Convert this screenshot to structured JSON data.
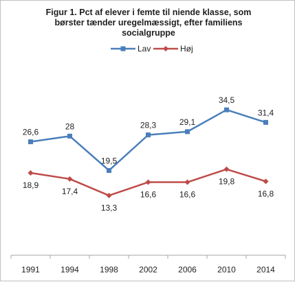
{
  "chart_data": {
    "type": "line",
    "title_lines": [
      "Figur 1. Pct af elever i femte til niende klasse, som",
      "børster tænder uregelmæssigt, efter familiens",
      "socialgruppe"
    ],
    "categories": [
      "1991",
      "1994",
      "1998",
      "2002",
      "2006",
      "2010",
      "2014"
    ],
    "series": [
      {
        "name": "Lav",
        "color": "#4a7ebb",
        "marker": "square",
        "values": [
          26.6,
          28,
          19.5,
          28.3,
          29.1,
          34.5,
          31.4
        ],
        "labels": [
          "26,6",
          "28",
          "19,5",
          "28,3",
          "29,1",
          "34,5",
          "31,4"
        ]
      },
      {
        "name": "Høj",
        "color": "#be4b48",
        "marker": "diamond",
        "values": [
          18.9,
          17.4,
          13.3,
          16.6,
          16.6,
          19.8,
          16.8
        ],
        "labels": [
          "18,9",
          "17,4",
          "13,3",
          "16,6",
          "16,6",
          "19,8",
          "16,8"
        ]
      }
    ],
    "legend_position": "top",
    "grid": false,
    "axis_line_color": "#a6a6a6"
  }
}
